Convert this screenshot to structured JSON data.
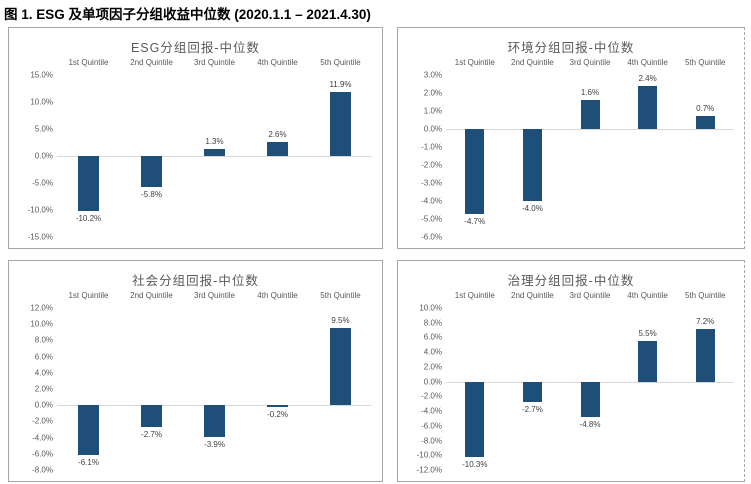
{
  "figure_title": "图 1. ESG 及单项因子分组收益中位数 (2020.1.1 – 2021.4.30)",
  "colors": {
    "bar_fill": "#1f4e79",
    "chart_title_text": "#595959",
    "axis_text": "#595959",
    "data_label_text": "#404040",
    "zero_line": "#d9d9d9",
    "panel_border": "#a6a6a6",
    "figure_title_text": "#000000"
  },
  "chart_data": [
    {
      "type": "bar",
      "title": "ESG分组回报-中位数",
      "categories": [
        "1st Quintile",
        "2nd Quintile",
        "3rd Quintile",
        "4th Quintile",
        "5th Quintile"
      ],
      "values": [
        -10.2,
        -5.8,
        1.3,
        2.6,
        11.9
      ],
      "data_labels": [
        "-10.2%",
        "-5.8%",
        "1.3%",
        "2.6%",
        "11.9%"
      ],
      "xlabel": "",
      "ylabel": "",
      "ylim": [
        -15,
        15
      ],
      "ystep": 5,
      "tick_suffix": "%",
      "grid": "zero-axis-only",
      "legend": "none"
    },
    {
      "type": "bar",
      "title": "环境分组回报-中位数",
      "categories": [
        "1st Quintile",
        "2nd Quintile",
        "3rd Quintile",
        "4th Quintile",
        "5th Quintile"
      ],
      "values": [
        -4.7,
        -4.0,
        1.6,
        2.4,
        0.7
      ],
      "data_labels": [
        "-4.7%",
        "-4.0%",
        "1.6%",
        "2.4%",
        "0.7%"
      ],
      "xlabel": "",
      "ylabel": "",
      "ylim": [
        -6,
        3
      ],
      "ystep": 1,
      "tick_suffix": "%",
      "grid": "zero-axis-only",
      "legend": "none"
    },
    {
      "type": "bar",
      "title": "社会分组回报-中位数",
      "categories": [
        "1st Quintile",
        "2nd Quintile",
        "3rd Quintile",
        "4th Quintile",
        "5th Quintile"
      ],
      "values": [
        -6.1,
        -2.7,
        -3.9,
        -0.2,
        9.5
      ],
      "data_labels": [
        "-6.1%",
        "-2.7%",
        "-3.9%",
        "-0.2%",
        "9.5%"
      ],
      "xlabel": "",
      "ylabel": "",
      "ylim": [
        -8,
        12
      ],
      "ystep": 2,
      "tick_suffix": "%",
      "grid": "zero-axis-only",
      "legend": "none"
    },
    {
      "type": "bar",
      "title": "治理分组回报-中位数",
      "categories": [
        "1st Quintile",
        "2nd Quintile",
        "3rd Quintile",
        "4th Quintile",
        "5th Quintile"
      ],
      "values": [
        -10.3,
        -2.7,
        -4.8,
        5.5,
        7.2
      ],
      "data_labels": [
        "-10.3%",
        "-2.7%",
        "-4.8%",
        "5.5%",
        "7.2%"
      ],
      "xlabel": "",
      "ylabel": "",
      "ylim": [
        -12,
        10
      ],
      "ystep": 2,
      "tick_suffix": "%",
      "grid": "zero-axis-only",
      "legend": "none"
    }
  ]
}
